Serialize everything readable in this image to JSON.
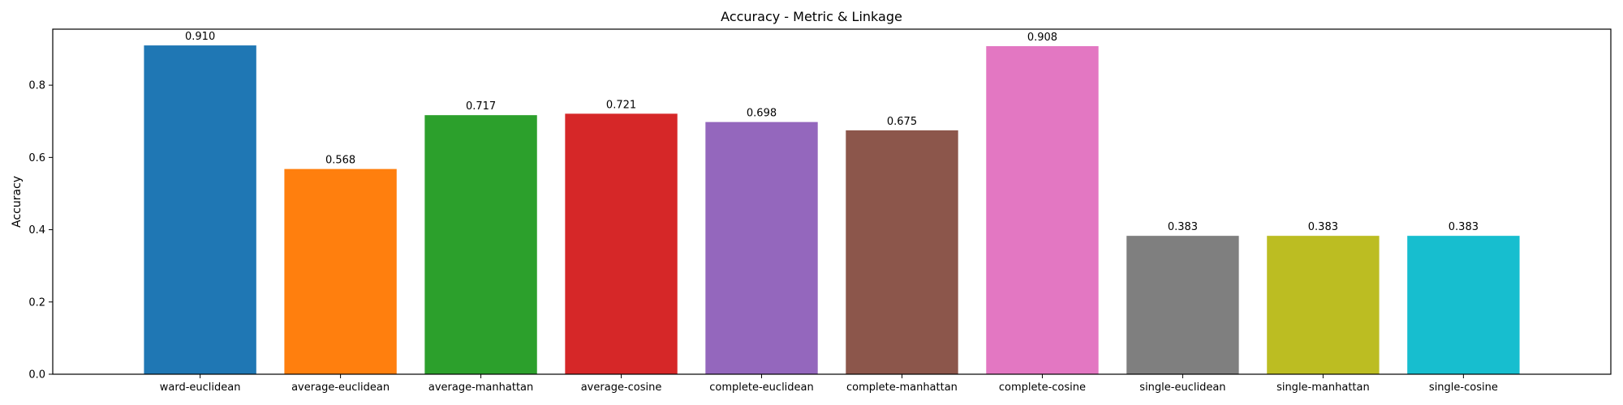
{
  "chart_data": {
    "type": "bar",
    "title": "Accuracy - Metric & Linkage",
    "xlabel": "",
    "ylabel": "Accuracy",
    "ylim": [
      0,
      0.955
    ],
    "yticks": [
      0.0,
      0.2,
      0.4,
      0.6,
      0.8
    ],
    "ytick_labels": [
      "0.0",
      "0.2",
      "0.4",
      "0.6",
      "0.8"
    ],
    "grid": false,
    "categories": [
      "ward-euclidean",
      "average-euclidean",
      "average-manhattan",
      "average-cosine",
      "complete-euclidean",
      "complete-manhattan",
      "complete-cosine",
      "single-euclidean",
      "single-manhattan",
      "single-cosine"
    ],
    "values": [
      0.91,
      0.568,
      0.717,
      0.721,
      0.698,
      0.675,
      0.908,
      0.383,
      0.383,
      0.383
    ],
    "data_labels": [
      "0.910",
      "0.568",
      "0.717",
      "0.721",
      "0.698",
      "0.675",
      "0.908",
      "0.383",
      "0.383",
      "0.383"
    ],
    "colors": [
      "#1f77b4",
      "#ff7f0e",
      "#2ca02c",
      "#d62728",
      "#9467bd",
      "#8c564b",
      "#e377c2",
      "#7f7f7f",
      "#bcbd22",
      "#17becf"
    ]
  }
}
